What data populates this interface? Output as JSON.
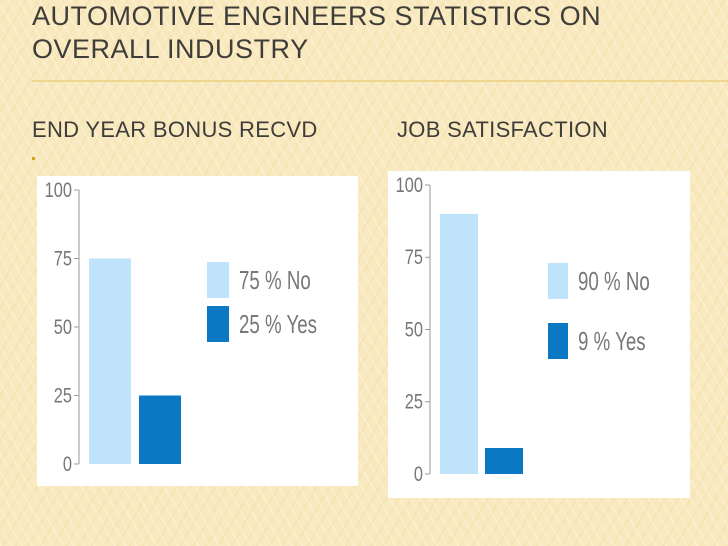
{
  "title": "Automotive Engineers Statistics on Overall Industry",
  "chart_data": [
    {
      "type": "bar",
      "title": "End Year Bonus Recvd",
      "categories": [
        "No",
        "Yes"
      ],
      "values": [
        75,
        25
      ],
      "legend": [
        "75 % No",
        "25 % Yes"
      ],
      "colors": [
        "#bfe3fb",
        "#0b78c3"
      ],
      "yticks": [
        "100",
        "75",
        "50",
        "25",
        "0"
      ],
      "ylim": [
        0,
        100
      ],
      "xlabel": "",
      "ylabel": "",
      "legend_position": "right"
    },
    {
      "type": "bar",
      "title": "Job Satisfaction",
      "categories": [
        "No",
        "Yes"
      ],
      "values": [
        90,
        9
      ],
      "legend": [
        "90 % No",
        "9 % Yes"
      ],
      "colors": [
        "#bfe3fb",
        "#0b78c3"
      ],
      "yticks": [
        "100",
        "75",
        "50",
        "25",
        "0"
      ],
      "ylim": [
        0,
        100
      ],
      "xlabel": "",
      "ylabel": "",
      "legend_position": "right"
    }
  ]
}
